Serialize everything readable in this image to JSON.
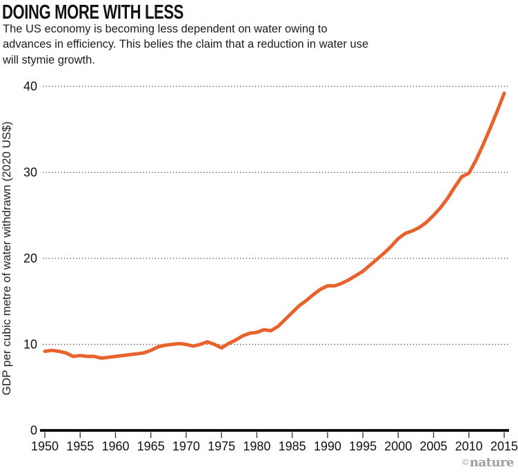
{
  "header": {
    "title": "DOING MORE WITH LESS",
    "subtitle_lines": [
      "The US economy is becoming less dependent on water owing to",
      "advances in efficiency. This belies the claim that a reduction in water use",
      "will stymie growth."
    ]
  },
  "credit": {
    "symbol": "©",
    "name": "nature"
  },
  "chart_data": {
    "type": "line",
    "title": "DOING MORE WITH LESS",
    "xlabel": "",
    "ylabel": "GDP per cubic metre of water withdrawn (2020 US$)",
    "xlim": [
      1950,
      2015
    ],
    "ylim": [
      0,
      40
    ],
    "x_ticks": [
      1950,
      1955,
      1960,
      1965,
      1970,
      1975,
      1980,
      1985,
      1990,
      1995,
      2000,
      2005,
      2010,
      2015
    ],
    "y_ticks": [
      0,
      10,
      20,
      30,
      40
    ],
    "grid": "horizontal-dotted",
    "legend": "none",
    "line_color": "#e8622d",
    "series": [
      {
        "x": [
          1950,
          1951,
          1952,
          1953,
          1954,
          1955,
          1956,
          1957,
          1958,
          1959,
          1960,
          1961,
          1962,
          1963,
          1964,
          1965,
          1966,
          1967,
          1968,
          1969,
          1970,
          1971,
          1972,
          1973,
          1974,
          1975,
          1976,
          1977,
          1978,
          1979,
          1980,
          1981,
          1982,
          1983,
          1984,
          1985,
          1986,
          1987,
          1988,
          1989,
          1990,
          1991,
          1992,
          1993,
          1994,
          1995,
          1996,
          1997,
          1998,
          1999,
          2000,
          2001,
          2002,
          2003,
          2004,
          2005,
          2006,
          2007,
          2008,
          2009,
          2010,
          2011,
          2012,
          2013,
          2014,
          2015
        ],
        "y": [
          9.2,
          9.3,
          9.2,
          9.0,
          8.6,
          8.7,
          8.6,
          8.6,
          8.4,
          8.5,
          8.6,
          8.7,
          8.8,
          8.9,
          9.0,
          9.3,
          9.7,
          9.9,
          10.0,
          10.1,
          10.0,
          9.8,
          10.0,
          10.3,
          10.0,
          9.6,
          10.1,
          10.5,
          11.0,
          11.3,
          11.4,
          11.7,
          11.6,
          12.1,
          12.9,
          13.7,
          14.5,
          15.1,
          15.8,
          16.4,
          16.8,
          16.8,
          17.1,
          17.5,
          18.0,
          18.5,
          19.2,
          19.9,
          20.6,
          21.4,
          22.3,
          22.9,
          23.2,
          23.6,
          24.2,
          25.0,
          25.9,
          27.0,
          28.3,
          29.5,
          29.9,
          31.4,
          33.2,
          35.1,
          37.1,
          39.2
        ]
      }
    ]
  }
}
